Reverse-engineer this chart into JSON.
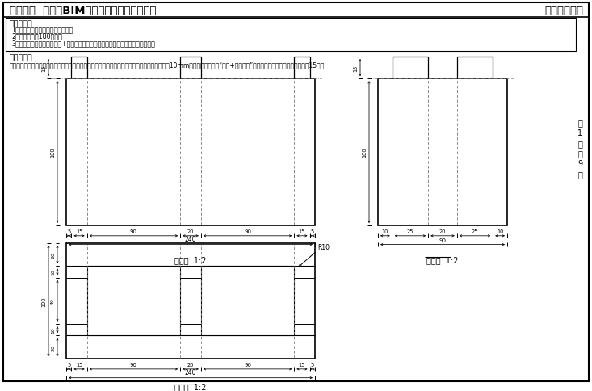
{
  "title_left": "第十三期  「全国BIM技能等级考试」一级试题",
  "title_right": "中国图学学会",
  "exam_req_title": "考试要求：",
  "exam_req": [
    "1．考试方式：计算机操作，闭卷；",
    "2．考试时间为180分钟；",
    "3．新建文件夹（以准考证号+姓名命名），用于存放本次考试中生成的全部文件。"
  ],
  "section_title": "试题部分：",
  "question": "一、根据给定的投影图及尺寸建立镂空混凝土崩台模型，投影图中所有镂空图案的侧圆角半径均为10mm，请将模型文件以“题码+考生姓名”为文件名保存到考生文件夹中。（15分）",
  "page_chars": [
    "第",
    "1",
    "页",
    "共",
    "9",
    "页"
  ],
  "bg_color": "#ffffff"
}
